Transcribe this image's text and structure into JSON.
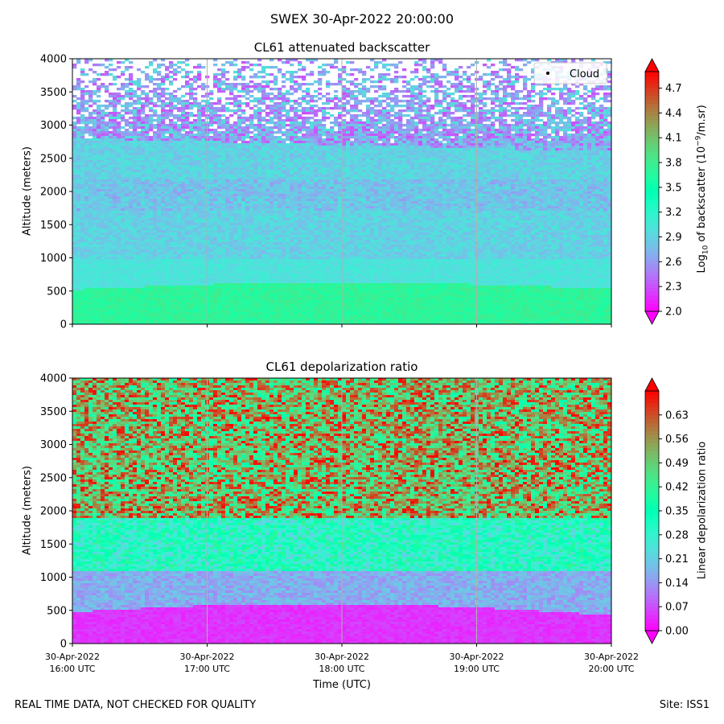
{
  "figure": {
    "title": "SWEX 30-Apr-2022 20:00:00",
    "footer_left": "REAL TIME DATA, NOT CHECKED FOR QUALITY",
    "footer_right": "Site: ISS1"
  },
  "chart_data": [
    {
      "type": "heatmap",
      "title": "CL61 attenuated backscatter",
      "ylabel": "Altitude (meters)",
      "ylim": [
        0,
        4000
      ],
      "yticks": [
        "0",
        "500",
        "1000",
        "1500",
        "2000",
        "2500",
        "3000",
        "3500",
        "4000"
      ],
      "xticks": [],
      "colorbar_label": "Log10 of backscatter (10^-9/m.sr)",
      "colorbar_label_parts": {
        "a": "Log",
        "sub": "10",
        "b": " of backscatter (10",
        "sup": "−9",
        "c": "/m.sr)"
      },
      "colorbar_ticks": [
        "2.0",
        "2.3",
        "2.6",
        "2.9",
        "3.2",
        "3.5",
        "3.8",
        "4.1",
        "4.4",
        "4.7"
      ],
      "colorbar_range": [
        2.0,
        4.9
      ],
      "colormap": "rainbow",
      "legend": {
        "label": "Cloud",
        "placement": "top-right"
      },
      "grid": "vertical at hour ticks"
    },
    {
      "type": "heatmap",
      "title": "CL61 depolarization ratio",
      "ylabel": "Altitude (meters)",
      "xlabel": "Time (UTC)",
      "ylim": [
        0,
        4000
      ],
      "yticks": [
        "0",
        "500",
        "1000",
        "1500",
        "2000",
        "2500",
        "3000",
        "3500",
        "4000"
      ],
      "xticks": [
        {
          "date": "30-Apr-2022",
          "time": "16:00 UTC"
        },
        {
          "date": "30-Apr-2022",
          "time": "17:00 UTC"
        },
        {
          "date": "30-Apr-2022",
          "time": "18:00 UTC"
        },
        {
          "date": "30-Apr-2022",
          "time": "19:00 UTC"
        },
        {
          "date": "30-Apr-2022",
          "time": "20:00 UTC"
        }
      ],
      "colorbar_label": "Linear depolarization ratio",
      "colorbar_ticks": [
        "0.00",
        "0.07",
        "0.14",
        "0.21",
        "0.28",
        "0.35",
        "0.42",
        "0.49",
        "0.56",
        "0.63"
      ],
      "colorbar_range": [
        0.0,
        0.7
      ],
      "colormap": "rainbow",
      "grid": "vertical at hour ticks"
    }
  ]
}
